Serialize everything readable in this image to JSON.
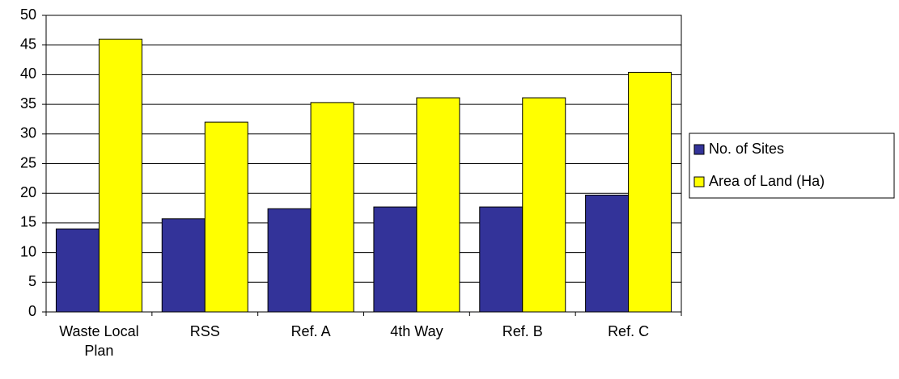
{
  "chart_data": {
    "type": "bar",
    "categories": [
      "Waste Local Plan",
      "RSS",
      "Ref. A",
      "4th Way",
      "Ref. B",
      "Ref. C"
    ],
    "series": [
      {
        "name": "No. of Sites",
        "color": "#333399",
        "values": [
          14,
          15.7,
          17.4,
          17.7,
          17.7,
          19.7
        ]
      },
      {
        "name": "Area of Land (Ha)",
        "color": "#ffff00",
        "values": [
          46,
          32,
          35.3,
          36.1,
          36.1,
          40.4
        ]
      }
    ],
    "ylim": [
      0,
      50
    ],
    "yticks": [
      0,
      5,
      10,
      15,
      20,
      25,
      30,
      35,
      40,
      45,
      50
    ],
    "grid": true,
    "legend": "right"
  }
}
